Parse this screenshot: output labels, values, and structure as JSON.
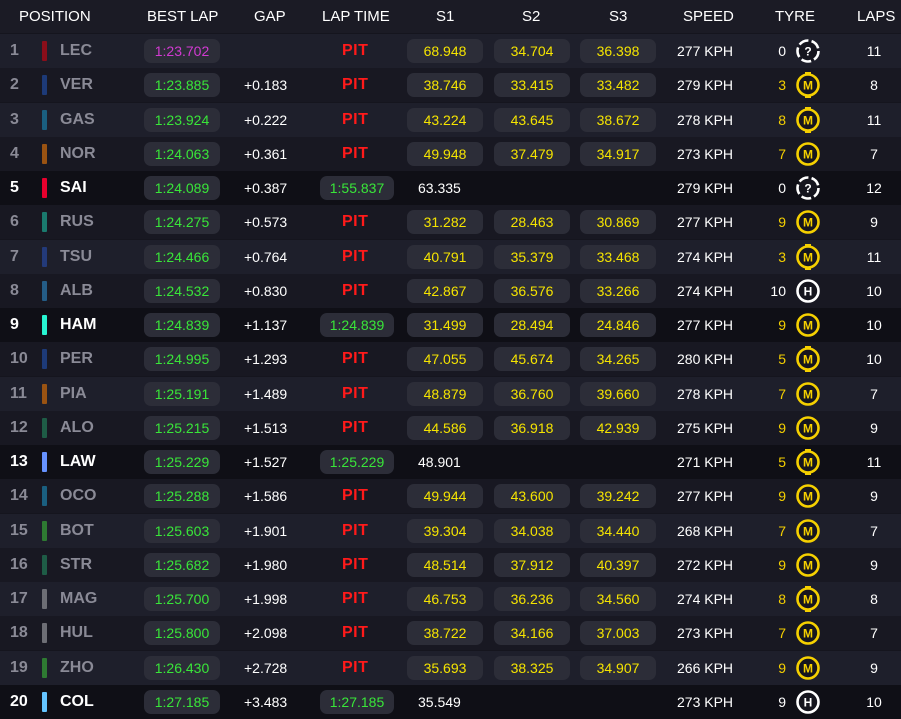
{
  "headers": {
    "position": "POSITION",
    "best_lap": "BEST LAP",
    "gap": "GAP",
    "lap_time": "LAP TIME",
    "s1": "S1",
    "s2": "S2",
    "s3": "S3",
    "speed": "SPEED",
    "tyre": "TYRE",
    "laps": "LAPS"
  },
  "colors": {
    "personal_best": "#39e639",
    "overall_best": "#d23ad2",
    "sector": "#f5e400",
    "pit": "#ff1a1a",
    "tyre_medium": "#f5d000",
    "tyre_hard": "#ffffff",
    "tyre_unknown": "#ffffff"
  },
  "rows": [
    {
      "pos": "1",
      "driver": "LEC",
      "team_color": "#8a0e1a",
      "active": false,
      "best_lap": "1:23.702",
      "best_purple": true,
      "gap": "",
      "pit": "PIT",
      "lap_time": "",
      "s1": "68.948",
      "s2": "34.704",
      "s3": "36.398",
      "speed": "277 KPH",
      "tyre_age": "0",
      "tyre_icon": "tyre-unknown-icon",
      "tyre_letter": "?",
      "laps": "11"
    },
    {
      "pos": "2",
      "driver": "VER",
      "team_color": "#1d3a78",
      "active": false,
      "best_lap": "1:23.885",
      "best_purple": false,
      "gap": "+0.183",
      "pit": "PIT",
      "lap_time": "",
      "s1": "38.746",
      "s2": "33.415",
      "s3": "33.482",
      "speed": "279 KPH",
      "tyre_age": "3",
      "tyre_icon": "tyre-medium-new-icon",
      "tyre_letter": "M",
      "laps": "8"
    },
    {
      "pos": "3",
      "driver": "GAS",
      "team_color": "#1a5f80",
      "active": false,
      "best_lap": "1:23.924",
      "best_purple": false,
      "gap": "+0.222",
      "pit": "PIT",
      "lap_time": "",
      "s1": "43.224",
      "s2": "43.645",
      "s3": "38.672",
      "speed": "278 KPH",
      "tyre_age": "8",
      "tyre_icon": "tyre-medium-new-icon",
      "tyre_letter": "M",
      "laps": "11"
    },
    {
      "pos": "4",
      "driver": "NOR",
      "team_color": "#9a5312",
      "active": false,
      "best_lap": "1:24.063",
      "best_purple": false,
      "gap": "+0.361",
      "pit": "PIT",
      "lap_time": "",
      "s1": "49.948",
      "s2": "37.479",
      "s3": "34.917",
      "speed": "273 KPH",
      "tyre_age": "7",
      "tyre_icon": "tyre-medium-icon",
      "tyre_letter": "M",
      "laps": "7"
    },
    {
      "pos": "5",
      "driver": "SAI",
      "team_color": "#e8002d",
      "active": true,
      "best_lap": "1:24.089",
      "best_purple": false,
      "gap": "+0.387",
      "pit": "",
      "lap_time": "1:55.837",
      "s1": "63.335",
      "s2": "",
      "s3": "",
      "speed": "279 KPH",
      "tyre_age": "0",
      "tyre_icon": "tyre-unknown-icon",
      "tyre_letter": "?",
      "laps": "12"
    },
    {
      "pos": "6",
      "driver": "RUS",
      "team_color": "#1a7a6e",
      "active": false,
      "best_lap": "1:24.275",
      "best_purple": false,
      "gap": "+0.573",
      "pit": "PIT",
      "lap_time": "",
      "s1": "31.282",
      "s2": "28.463",
      "s3": "30.869",
      "speed": "277 KPH",
      "tyre_age": "9",
      "tyre_icon": "tyre-medium-icon",
      "tyre_letter": "M",
      "laps": "9"
    },
    {
      "pos": "7",
      "driver": "TSU",
      "team_color": "#233a7a",
      "active": false,
      "best_lap": "1:24.466",
      "best_purple": false,
      "gap": "+0.764",
      "pit": "PIT",
      "lap_time": "",
      "s1": "40.791",
      "s2": "35.379",
      "s3": "33.468",
      "speed": "274 KPH",
      "tyre_age": "3",
      "tyre_icon": "tyre-medium-new-icon",
      "tyre_letter": "M",
      "laps": "11"
    },
    {
      "pos": "8",
      "driver": "ALB",
      "team_color": "#245c86",
      "active": false,
      "best_lap": "1:24.532",
      "best_purple": false,
      "gap": "+0.830",
      "pit": "PIT",
      "lap_time": "",
      "s1": "42.867",
      "s2": "36.576",
      "s3": "33.266",
      "speed": "274 KPH",
      "tyre_age": "10",
      "tyre_icon": "tyre-hard-icon",
      "tyre_letter": "H",
      "laps": "10"
    },
    {
      "pos": "9",
      "driver": "HAM",
      "team_color": "#27f4d2",
      "active": true,
      "best_lap": "1:24.839",
      "best_purple": false,
      "gap": "+1.137",
      "pit": "",
      "lap_time": "1:24.839",
      "s1": "31.499",
      "s2": "28.494",
      "s3": "24.846",
      "speed": "277 KPH",
      "tyre_age": "9",
      "tyre_icon": "tyre-medium-icon",
      "tyre_letter": "M",
      "laps": "10"
    },
    {
      "pos": "10",
      "driver": "PER",
      "team_color": "#1d3a78",
      "active": false,
      "best_lap": "1:24.995",
      "best_purple": false,
      "gap": "+1.293",
      "pit": "PIT",
      "lap_time": "",
      "s1": "47.055",
      "s2": "45.674",
      "s3": "34.265",
      "speed": "280 KPH",
      "tyre_age": "5",
      "tyre_icon": "tyre-medium-new-icon",
      "tyre_letter": "M",
      "laps": "10"
    },
    {
      "pos": "11",
      "driver": "PIA",
      "team_color": "#9a5312",
      "active": false,
      "best_lap": "1:25.191",
      "best_purple": false,
      "gap": "+1.489",
      "pit": "PIT",
      "lap_time": "",
      "s1": "48.879",
      "s2": "36.760",
      "s3": "39.660",
      "speed": "278 KPH",
      "tyre_age": "7",
      "tyre_icon": "tyre-medium-icon",
      "tyre_letter": "M",
      "laps": "7"
    },
    {
      "pos": "12",
      "driver": "ALO",
      "team_color": "#1e5c46",
      "active": false,
      "best_lap": "1:25.215",
      "best_purple": false,
      "gap": "+1.513",
      "pit": "PIT",
      "lap_time": "",
      "s1": "44.586",
      "s2": "36.918",
      "s3": "42.939",
      "speed": "275 KPH",
      "tyre_age": "9",
      "tyre_icon": "tyre-medium-icon",
      "tyre_letter": "M",
      "laps": "9"
    },
    {
      "pos": "13",
      "driver": "LAW",
      "team_color": "#6692ff",
      "active": true,
      "best_lap": "1:25.229",
      "best_purple": false,
      "gap": "+1.527",
      "pit": "",
      "lap_time": "1:25.229",
      "s1": "48.901",
      "s2": "",
      "s3": "",
      "speed": "271 KPH",
      "tyre_age": "5",
      "tyre_icon": "tyre-medium-new-icon",
      "tyre_letter": "M",
      "laps": "11"
    },
    {
      "pos": "14",
      "driver": "OCO",
      "team_color": "#1a5f80",
      "active": false,
      "best_lap": "1:25.288",
      "best_purple": false,
      "gap": "+1.586",
      "pit": "PIT",
      "lap_time": "",
      "s1": "49.944",
      "s2": "43.600",
      "s3": "39.242",
      "speed": "277 KPH",
      "tyre_age": "9",
      "tyre_icon": "tyre-medium-icon",
      "tyre_letter": "M",
      "laps": "9"
    },
    {
      "pos": "15",
      "driver": "BOT",
      "team_color": "#2e7a32",
      "active": false,
      "best_lap": "1:25.603",
      "best_purple": false,
      "gap": "+1.901",
      "pit": "PIT",
      "lap_time": "",
      "s1": "39.304",
      "s2": "34.038",
      "s3": "34.440",
      "speed": "268 KPH",
      "tyre_age": "7",
      "tyre_icon": "tyre-medium-icon",
      "tyre_letter": "M",
      "laps": "7"
    },
    {
      "pos": "16",
      "driver": "STR",
      "team_color": "#1e5c46",
      "active": false,
      "best_lap": "1:25.682",
      "best_purple": false,
      "gap": "+1.980",
      "pit": "PIT",
      "lap_time": "",
      "s1": "48.514",
      "s2": "37.912",
      "s3": "40.397",
      "speed": "272 KPH",
      "tyre_age": "9",
      "tyre_icon": "tyre-medium-icon",
      "tyre_letter": "M",
      "laps": "9"
    },
    {
      "pos": "17",
      "driver": "MAG",
      "team_color": "#6d6e75",
      "active": false,
      "best_lap": "1:25.700",
      "best_purple": false,
      "gap": "+1.998",
      "pit": "PIT",
      "lap_time": "",
      "s1": "46.753",
      "s2": "36.236",
      "s3": "34.560",
      "speed": "274 KPH",
      "tyre_age": "8",
      "tyre_icon": "tyre-medium-new-icon",
      "tyre_letter": "M",
      "laps": "8"
    },
    {
      "pos": "18",
      "driver": "HUL",
      "team_color": "#6d6e75",
      "active": false,
      "best_lap": "1:25.800",
      "best_purple": false,
      "gap": "+2.098",
      "pit": "PIT",
      "lap_time": "",
      "s1": "38.722",
      "s2": "34.166",
      "s3": "37.003",
      "speed": "273 KPH",
      "tyre_age": "7",
      "tyre_icon": "tyre-medium-icon",
      "tyre_letter": "M",
      "laps": "7"
    },
    {
      "pos": "19",
      "driver": "ZHO",
      "team_color": "#2e7a32",
      "active": false,
      "best_lap": "1:26.430",
      "best_purple": false,
      "gap": "+2.728",
      "pit": "PIT",
      "lap_time": "",
      "s1": "35.693",
      "s2": "38.325",
      "s3": "34.907",
      "speed": "266 KPH",
      "tyre_age": "9",
      "tyre_icon": "tyre-medium-icon",
      "tyre_letter": "M",
      "laps": "9"
    },
    {
      "pos": "20",
      "driver": "COL",
      "team_color": "#64c4ff",
      "active": true,
      "best_lap": "1:27.185",
      "best_purple": false,
      "gap": "+3.483",
      "pit": "",
      "lap_time": "1:27.185",
      "s1": "35.549",
      "s2": "",
      "s3": "",
      "speed": "273 KPH",
      "tyre_age": "9",
      "tyre_icon": "tyre-hard-icon",
      "tyre_letter": "H",
      "laps": "10"
    }
  ]
}
